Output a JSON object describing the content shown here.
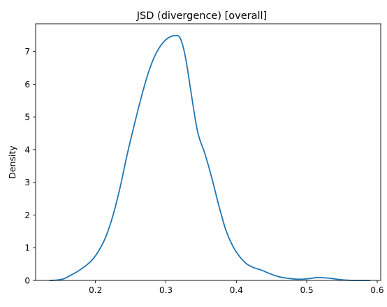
{
  "chart_data": {
    "type": "line",
    "title": "JSD (divergence) [overall]",
    "xlabel": "",
    "ylabel": "Density",
    "xlim": [
      0.115,
      0.605
    ],
    "ylim": [
      0,
      7.85
    ],
    "x_ticks": [
      0.2,
      0.3,
      0.4,
      0.5,
      0.6
    ],
    "x_tick_labels": [
      "0.2",
      "0.3",
      "0.4",
      "0.5",
      "0.6"
    ],
    "y_ticks": [
      0,
      1,
      2,
      3,
      4,
      5,
      6,
      7
    ],
    "y_tick_labels": [
      "0",
      "1",
      "2",
      "3",
      "4",
      "5",
      "6",
      "7"
    ],
    "grid": false,
    "legend": "none",
    "series": [
      {
        "color": "#1f77b4",
        "x": [
          0.135,
          0.145,
          0.155,
          0.165,
          0.175,
          0.185,
          0.195,
          0.205,
          0.215,
          0.225,
          0.235,
          0.245,
          0.255,
          0.265,
          0.275,
          0.285,
          0.295,
          0.305,
          0.315,
          0.32,
          0.325,
          0.33,
          0.335,
          0.345,
          0.355,
          0.365,
          0.375,
          0.385,
          0.395,
          0.405,
          0.415,
          0.425,
          0.435,
          0.445,
          0.455,
          0.465,
          0.475,
          0.485,
          0.495,
          0.505,
          0.515,
          0.525,
          0.535,
          0.545,
          0.555,
          0.565,
          0.575,
          0.59
        ],
        "y": [
          0.0,
          0.01,
          0.05,
          0.16,
          0.28,
          0.43,
          0.62,
          0.92,
          1.35,
          2.0,
          2.85,
          3.85,
          4.75,
          5.6,
          6.35,
          6.9,
          7.25,
          7.44,
          7.49,
          7.42,
          7.1,
          6.55,
          5.85,
          4.55,
          3.9,
          3.15,
          2.3,
          1.55,
          1.05,
          0.72,
          0.5,
          0.39,
          0.32,
          0.23,
          0.15,
          0.09,
          0.06,
          0.04,
          0.04,
          0.06,
          0.09,
          0.08,
          0.06,
          0.03,
          0.01,
          0.0,
          0.0,
          0.0
        ]
      }
    ]
  }
}
